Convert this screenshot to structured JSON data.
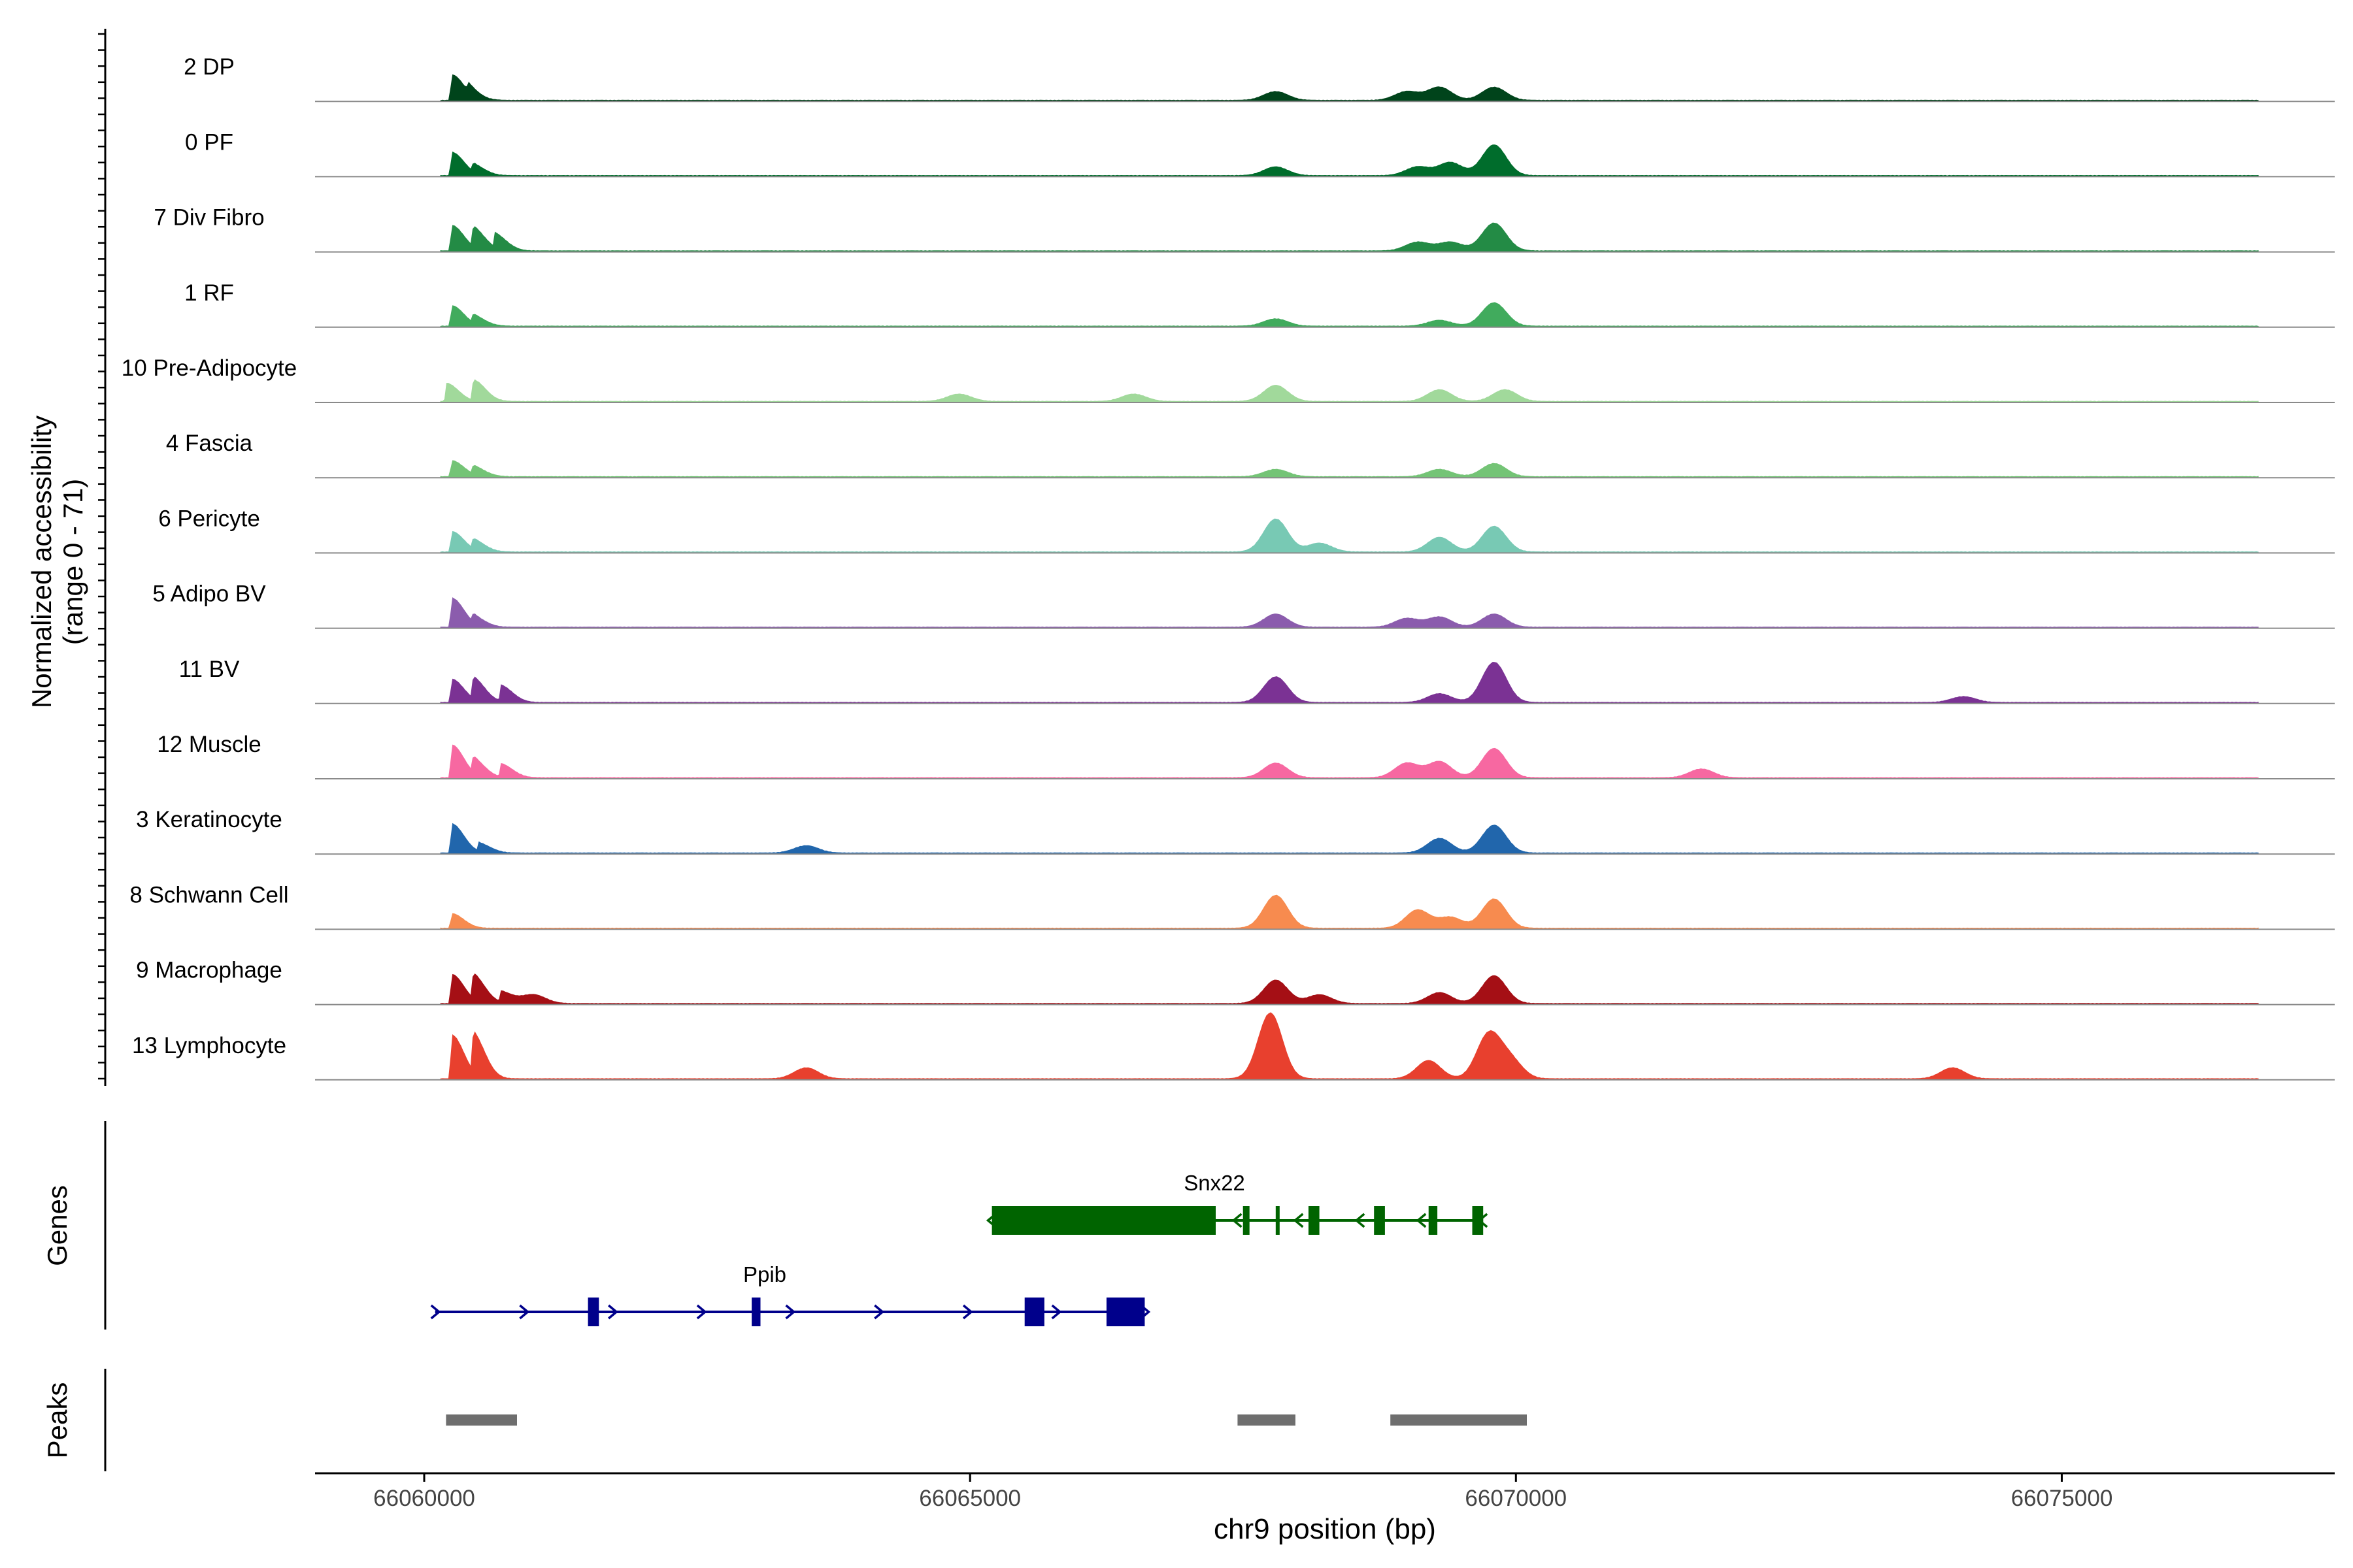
{
  "chart_data": {
    "type": "area",
    "title": "",
    "chromosome": "chr9",
    "xlabel": "chr9 position (bp)",
    "xlim": [
      66059000,
      66077500
    ],
    "xticks": [
      66060000,
      66065000,
      66070000,
      66075000
    ],
    "xtick_labels": [
      "66060000",
      "66065000",
      "66070000",
      "66075000"
    ],
    "ylabel_line1": "Normalized accessibility",
    "ylabel_line2": "(range 0 - 71)",
    "yrange": [
      0,
      71
    ],
    "tracks": [
      {
        "name": "2 DP",
        "color": "#00441b",
        "peaks": [
          [
            66060250,
            0.35
          ],
          [
            66060400,
            0.12
          ],
          [
            66067800,
            0.12
          ],
          [
            66069000,
            0.12
          ],
          [
            66069300,
            0.18
          ],
          [
            66069800,
            0.18
          ]
        ]
      },
      {
        "name": "0 PF",
        "color": "#006d2c",
        "peaks": [
          [
            66060250,
            0.32
          ],
          [
            66060450,
            0.12
          ],
          [
            66067800,
            0.12
          ],
          [
            66069100,
            0.12
          ],
          [
            66069400,
            0.18
          ],
          [
            66069800,
            0.42
          ]
        ]
      },
      {
        "name": "7 Div Fibro",
        "color": "#238b45",
        "peaks": [
          [
            66060250,
            0.35
          ],
          [
            66060450,
            0.28
          ],
          [
            66060650,
            0.2
          ],
          [
            66069100,
            0.12
          ],
          [
            66069400,
            0.12
          ],
          [
            66069800,
            0.38
          ]
        ]
      },
      {
        "name": "1 RF",
        "color": "#41ab5d",
        "peaks": [
          [
            66060250,
            0.28
          ],
          [
            66060450,
            0.12
          ],
          [
            66067800,
            0.1
          ],
          [
            66069300,
            0.08
          ],
          [
            66069800,
            0.32
          ]
        ]
      },
      {
        "name": "10 Pre-Adipocyte",
        "color": "#a1d99b",
        "peaks": [
          [
            66060200,
            0.25
          ],
          [
            66060450,
            0.28
          ],
          [
            66064900,
            0.1
          ],
          [
            66066500,
            0.1
          ],
          [
            66067800,
            0.22
          ],
          [
            66069300,
            0.16
          ],
          [
            66069900,
            0.16
          ]
        ]
      },
      {
        "name": "4 Fascia",
        "color": "#74c476",
        "peaks": [
          [
            66060250,
            0.22
          ],
          [
            66060450,
            0.12
          ],
          [
            66067800,
            0.1
          ],
          [
            66069300,
            0.1
          ],
          [
            66069800,
            0.18
          ]
        ]
      },
      {
        "name": "6 Pericyte",
        "color": "#78c9b4",
        "peaks": [
          [
            66060250,
            0.28
          ],
          [
            66060450,
            0.14
          ],
          [
            66067800,
            0.45
          ],
          [
            66068200,
            0.12
          ],
          [
            66069300,
            0.2
          ],
          [
            66069800,
            0.35
          ]
        ]
      },
      {
        "name": "5 Adipo BV",
        "color": "#8b5cad",
        "peaks": [
          [
            66060250,
            0.4
          ],
          [
            66060450,
            0.12
          ],
          [
            66067800,
            0.18
          ],
          [
            66069000,
            0.12
          ],
          [
            66069300,
            0.14
          ],
          [
            66069800,
            0.18
          ]
        ]
      },
      {
        "name": "11 BV",
        "color": "#7b3294",
        "peaks": [
          [
            66060250,
            0.32
          ],
          [
            66060450,
            0.3
          ],
          [
            66060700,
            0.22
          ],
          [
            66067800,
            0.35
          ],
          [
            66069300,
            0.12
          ],
          [
            66069800,
            0.55
          ],
          [
            66074100,
            0.08
          ]
        ]
      },
      {
        "name": "12 Muscle",
        "color": "#f768a1",
        "peaks": [
          [
            66060250,
            0.45
          ],
          [
            66060450,
            0.22
          ],
          [
            66060700,
            0.18
          ],
          [
            66067800,
            0.2
          ],
          [
            66069000,
            0.2
          ],
          [
            66069300,
            0.22
          ],
          [
            66069800,
            0.4
          ],
          [
            66071700,
            0.12
          ]
        ]
      },
      {
        "name": "3 Keratinocyte",
        "color": "#2166ac",
        "peaks": [
          [
            66060250,
            0.4
          ],
          [
            66060500,
            0.12
          ],
          [
            66063500,
            0.1
          ],
          [
            66069300,
            0.2
          ],
          [
            66069800,
            0.38
          ]
        ]
      },
      {
        "name": "8 Schwann Cell",
        "color": "#f78b4f",
        "peaks": [
          [
            66060250,
            0.2
          ],
          [
            66067800,
            0.45
          ],
          [
            66069100,
            0.25
          ],
          [
            66069400,
            0.15
          ],
          [
            66069800,
            0.4
          ]
        ]
      },
      {
        "name": "9 Macrophage",
        "color": "#a50f15",
        "peaks": [
          [
            66060250,
            0.4
          ],
          [
            66060450,
            0.35
          ],
          [
            66060700,
            0.15
          ],
          [
            66061000,
            0.12
          ],
          [
            66067800,
            0.32
          ],
          [
            66068200,
            0.12
          ],
          [
            66069300,
            0.15
          ],
          [
            66069800,
            0.38
          ]
        ]
      },
      {
        "name": "13 Lymphocyte",
        "color": "#e8402e",
        "peaks": [
          [
            66060250,
            0.6
          ],
          [
            66060450,
            0.55
          ],
          [
            66063500,
            0.15
          ],
          [
            66067750,
            0.9
          ],
          [
            66069200,
            0.25
          ],
          [
            66069750,
            0.6
          ],
          [
            66069950,
            0.25
          ],
          [
            66074000,
            0.15
          ]
        ]
      }
    ],
    "genes_label": "Genes",
    "genes": [
      {
        "name": "Snx22",
        "color": "#006400",
        "strand": "-",
        "start": 66065200,
        "end": 66069700,
        "exons": [
          [
            66065200,
            66067250
          ],
          [
            66067500,
            66067560
          ],
          [
            66067800,
            66067830
          ],
          [
            66068100,
            66068200
          ],
          [
            66068700,
            66068800
          ],
          [
            66069200,
            66069280
          ],
          [
            66069600,
            66069700
          ]
        ]
      },
      {
        "name": "Ppib",
        "color": "#00008b",
        "strand": "+",
        "start": 66060100,
        "end": 66066600,
        "exons": [
          [
            66061500,
            66061600
          ],
          [
            66063000,
            66063080
          ],
          [
            66065500,
            66065680
          ],
          [
            66066250,
            66066600
          ]
        ]
      }
    ],
    "peaks_label": "Peaks",
    "peak_regions": [
      [
        66060200,
        66060850
      ],
      [
        66067450,
        66067980
      ],
      [
        66068850,
        66070100
      ]
    ],
    "peak_color": "#6e6e6e"
  }
}
